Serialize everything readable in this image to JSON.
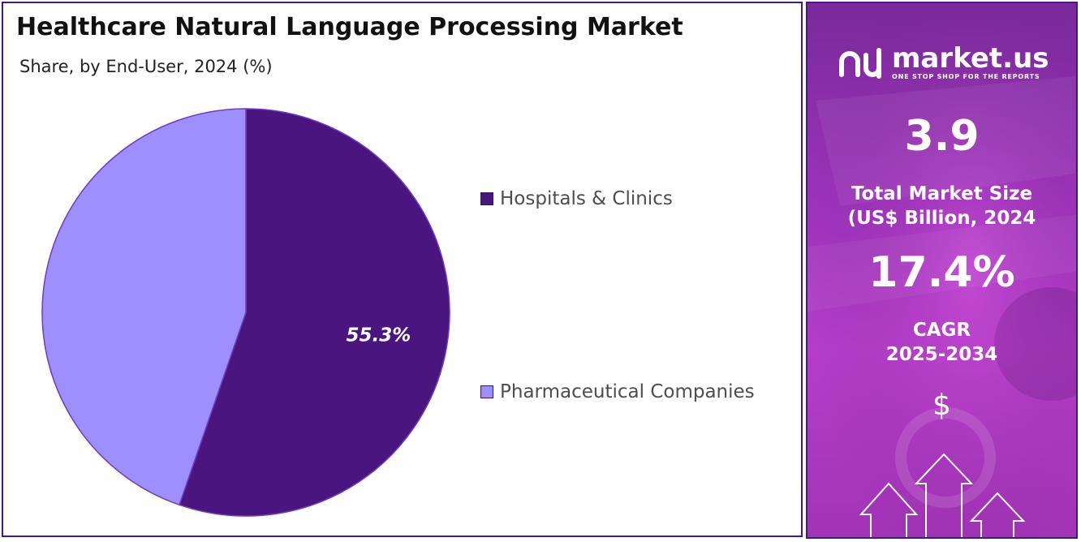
{
  "title": "Healthcare Natural Language Processing Market",
  "subtitle": "Share, by End-User, 2024 (%)",
  "chart_data": {
    "type": "pie",
    "categories": [
      "Hospitals & Clinics",
      "Pharmaceutical Companies"
    ],
    "values": [
      55.3,
      44.7
    ],
    "data_labels": [
      "55.3%",
      ""
    ],
    "colors": [
      "#4b1580",
      "#9f8ffd"
    ],
    "legend_position": "right"
  },
  "sidebar": {
    "brand": "market.us",
    "tagline": "ONE STOP SHOP FOR THE REPORTS",
    "market_size_value": "3.9",
    "market_size_label_line1": "Total Market Size",
    "market_size_label_line2": "(US$ Billion, 2024",
    "cagr_value": "17.4%",
    "cagr_label_line1": "CAGR",
    "cagr_label_line2": "2025-2034",
    "currency_symbol": "$"
  }
}
